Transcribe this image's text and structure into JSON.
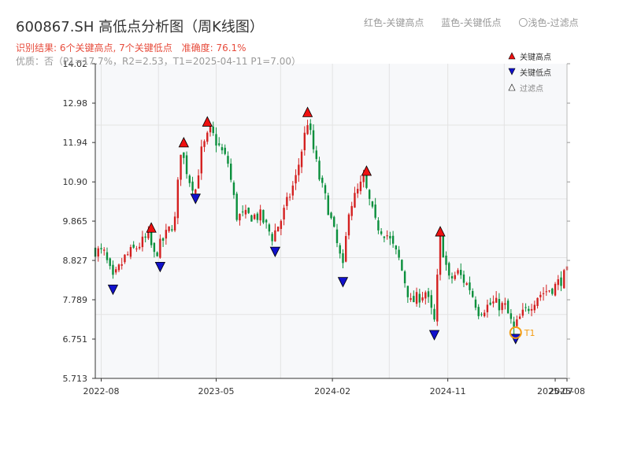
{
  "title": "600867.SH 高低点分析图（周K线图）",
  "top_legend": [
    "红色-关键高点",
    "蓝色-关键低点",
    "〇浅色-过滤点"
  ],
  "result_line": [
    "识别结果: 6个关键高点, 7个关键低点",
    "准确度: 76.1%"
  ],
  "quality_line": "优质：否（P1=17.7%，R2=2.53，T1=2025-04-11 P1=7.00）",
  "colors": {
    "up": "#d42020",
    "down": "#0a8f3c",
    "high": "#ee1111",
    "low": "#1111cc",
    "t1": "#f39c12",
    "grid": "#e3e3e3",
    "plot_bg": "#f7f8fa"
  },
  "chart_data": {
    "type": "candlestick",
    "x_ticks": [
      "2022-08",
      "2023-05",
      "2024-02",
      "2024-11",
      "2025-07",
      "2025-08"
    ],
    "y_ticks": [
      "5.713",
      "6.751",
      "7.789",
      "8.827",
      "9.865",
      "10.90",
      "11.94",
      "12.98",
      "14.02"
    ],
    "ylim": [
      5.713,
      14.02
    ],
    "x_range": [
      "2022-07-18",
      "2025-08-11"
    ],
    "bands": [
      7.4,
      8.9,
      10.45,
      12.4
    ],
    "anchors": [
      [
        "2022-07-18",
        9.1
      ],
      [
        "2022-08-08",
        9.0
      ],
      [
        "2022-08-29",
        8.3
      ],
      [
        "2022-09-26",
        8.9
      ],
      [
        "2022-11-21",
        9.45
      ],
      [
        "2022-12-05",
        8.95
      ],
      [
        "2023-01-02",
        9.5
      ],
      [
        "2023-01-23",
        9.9
      ],
      [
        "2023-02-06",
        11.75
      ],
      [
        "2023-02-27",
        10.95
      ],
      [
        "2023-03-13",
        10.7
      ],
      [
        "2023-03-27",
        11.7
      ],
      [
        "2023-04-17",
        12.25
      ],
      [
        "2023-05-29",
        11.4
      ],
      [
        "2023-06-19",
        10.0
      ],
      [
        "2023-08-14",
        10.0
      ],
      [
        "2023-09-11",
        9.45
      ],
      [
        "2023-10-02",
        9.9
      ],
      [
        "2023-11-06",
        11.0
      ],
      [
        "2023-12-04",
        12.5
      ],
      [
        "2024-01-01",
        11.0
      ],
      [
        "2024-01-22",
        10.2
      ],
      [
        "2024-02-26",
        8.6
      ],
      [
        "2024-03-11",
        10.2
      ],
      [
        "2024-04-15",
        10.95
      ],
      [
        "2024-05-13",
        9.8
      ],
      [
        "2024-06-10",
        9.5
      ],
      [
        "2024-07-08",
        8.85
      ],
      [
        "2024-08-05",
        7.7
      ],
      [
        "2024-09-09",
        8.0
      ],
      [
        "2024-09-30",
        7.2
      ],
      [
        "2024-10-14",
        9.45
      ],
      [
        "2024-11-04",
        8.3
      ],
      [
        "2024-11-25",
        8.5
      ],
      [
        "2024-12-23",
        8.1
      ],
      [
        "2025-01-13",
        7.5
      ],
      [
        "2025-02-17",
        7.7
      ],
      [
        "2025-03-17",
        7.6
      ],
      [
        "2025-04-07",
        7.0
      ],
      [
        "2025-04-21",
        7.3
      ],
      [
        "2025-06-02",
        7.9
      ],
      [
        "2025-07-14",
        8.15
      ],
      [
        "2025-08-11",
        8.5
      ]
    ],
    "high_points": [
      [
        "2022-11-28",
        9.55
      ],
      [
        "2023-02-13",
        11.8
      ],
      [
        "2023-04-10",
        12.35
      ],
      [
        "2023-12-04",
        12.6
      ],
      [
        "2024-04-22",
        11.05
      ],
      [
        "2024-10-14",
        9.45
      ]
    ],
    "low_points": [
      [
        "2022-08-29",
        8.2
      ],
      [
        "2022-12-19",
        8.8
      ],
      [
        "2023-03-13",
        10.6
      ],
      [
        "2023-09-18",
        9.2
      ],
      [
        "2024-02-26",
        8.4
      ],
      [
        "2024-09-30",
        7.0
      ],
      [
        "2025-04-11",
        6.9
      ]
    ],
    "filtered_points": [],
    "t1_marker": {
      "date": "2025-04-11",
      "price": 6.92,
      "label": "T1"
    },
    "legend": [
      {
        "key": "high",
        "label": "关键高点"
      },
      {
        "key": "low",
        "label": "关键低点"
      },
      {
        "key": "filtered",
        "label": "过滤点"
      }
    ]
  }
}
